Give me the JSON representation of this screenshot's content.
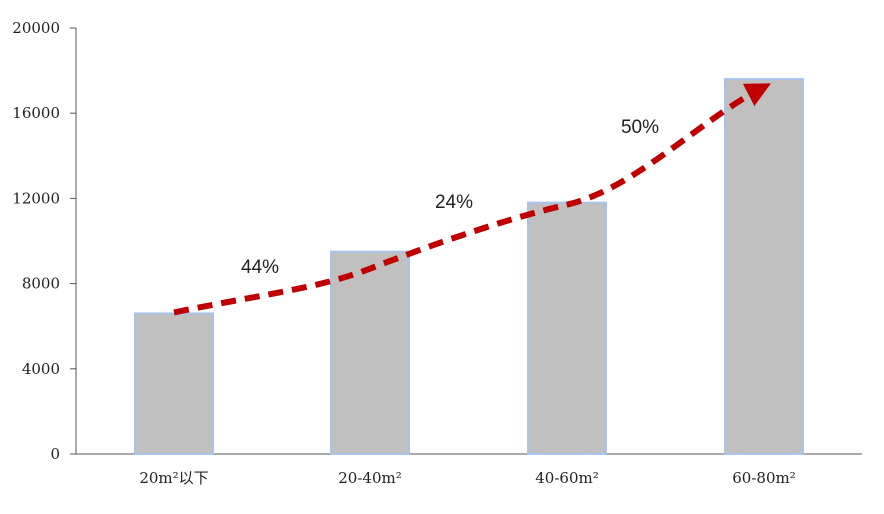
{
  "chart_data": {
    "type": "bar",
    "categories": [
      "20m²以下",
      "20-40m²",
      "40-60m²",
      "60-80m²"
    ],
    "values": [
      6600,
      9500,
      11800,
      17600
    ],
    "ylim": [
      0,
      20000
    ],
    "yticks": [
      0,
      4000,
      8000,
      12000,
      16000,
      20000
    ],
    "grid": false,
    "colors": {
      "bar_fill": "#c0c0c0",
      "bar_border": "#a9c4eb",
      "trend_arrow": "#c00000",
      "axis": "#555555"
    },
    "annotations": [
      {
        "text": "44%",
        "between": [
          0,
          1
        ]
      },
      {
        "text": "24%",
        "between": [
          1,
          2
        ]
      },
      {
        "text": "50%",
        "between": [
          2,
          3
        ]
      }
    ],
    "trend_arrow": {
      "style": "dashed",
      "from_category": 0,
      "to_category": 3
    }
  }
}
